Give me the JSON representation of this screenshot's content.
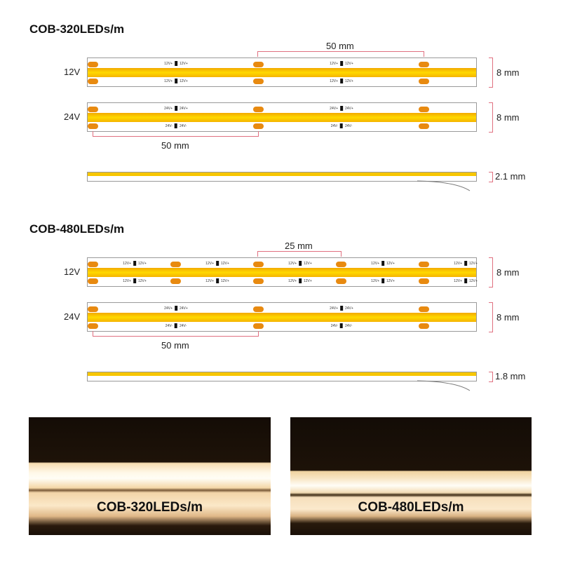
{
  "colors": {
    "led": "#ffd900",
    "pad": "#e88a10",
    "dimension": "#e07080"
  },
  "sections": [
    {
      "title": "COB-320LEDs/m",
      "top_dim": "50 mm",
      "bottom_dim": "50 mm",
      "thickness": "2.1 mm",
      "rows": [
        {
          "voltage": "12V",
          "width": "8 mm",
          "top_label": "12V+",
          "bottom_label": "12V+",
          "pad_pitch_mm": 50
        },
        {
          "voltage": "24V",
          "width": "8 mm",
          "top_label": "24V+",
          "bottom_label": "24V-",
          "pad_pitch_mm": 50
        }
      ]
    },
    {
      "title": "COB-480LEDs/m",
      "top_dim": "25 mm",
      "bottom_dim": "50 mm",
      "thickness": "1.8 mm",
      "rows": [
        {
          "voltage": "12V",
          "width": "8 mm",
          "top_label": "12V+",
          "bottom_label": "12V+",
          "pad_pitch_mm": 25
        },
        {
          "voltage": "24V",
          "width": "8 mm",
          "top_label": "24V+",
          "bottom_label": "24V-",
          "pad_pitch_mm": 50
        }
      ]
    }
  ],
  "photos": [
    {
      "caption": "COB-320LEDs/m"
    },
    {
      "caption": "COB-480LEDs/m"
    }
  ]
}
